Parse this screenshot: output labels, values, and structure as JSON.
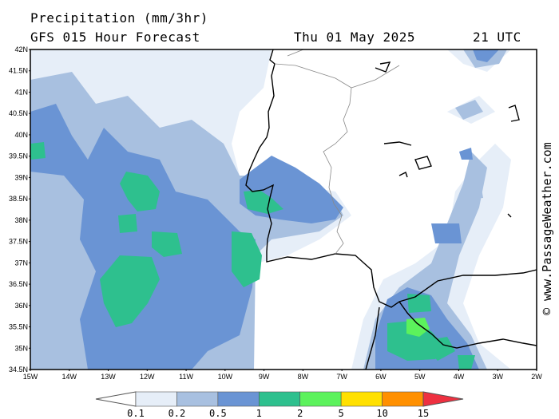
{
  "header": {
    "title": "Precipitation (mm/3hr)",
    "subtitle": "GFS 015 Hour Forecast",
    "date": "Thu 01 May 2025",
    "time": "21 UTC"
  },
  "credit": "© www.PassageWeather.com",
  "map": {
    "lat_labels": [
      "42N",
      "41.5N",
      "41N",
      "40.5N",
      "40N",
      "39.5N",
      "39N",
      "38.5N",
      "38N",
      "37.5N",
      "37N",
      "36.5N",
      "36N",
      "35.5N",
      "35N",
      "34.5N"
    ],
    "lon_labels": [
      "15W",
      "14W",
      "13W",
      "12W",
      "11W",
      "10W",
      "9W",
      "8W",
      "7W",
      "6W",
      "5W",
      "4W",
      "3W",
      "2W"
    ],
    "lon_range": [
      -15,
      -2
    ],
    "lat_range": [
      34.5,
      42
    ]
  },
  "legend": {
    "labels": [
      "0.1",
      "0.2",
      "0.5",
      "1",
      "2",
      "5",
      "10",
      "15"
    ],
    "colors": [
      "#e6eef8",
      "#a8c0e0",
      "#6a94d4",
      "#2ec08e",
      "#5cf25c",
      "#ffe000",
      "#ff9000",
      "#ee3040"
    ]
  },
  "colors": {
    "light": "#e6eef8",
    "medium": "#a8c0e0",
    "dark": "#6a94d4",
    "teal": "#2ec08e",
    "green": "#5cf25c"
  }
}
